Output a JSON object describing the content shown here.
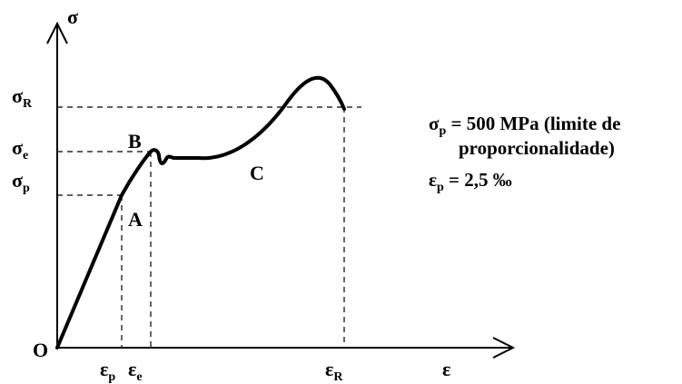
{
  "axes": {
    "y_symbol": "σ",
    "x_symbol": "ε",
    "origin": "O"
  },
  "stress_labels": [
    {
      "sym": "σ",
      "sub": "R"
    },
    {
      "sym": "σ",
      "sub": "e"
    },
    {
      "sym": "σ",
      "sub": "p"
    }
  ],
  "strain_labels": [
    {
      "sym": "ε",
      "sub": "p"
    },
    {
      "sym": "ε",
      "sub": "e"
    },
    {
      "sym": "ε",
      "sub": "R"
    }
  ],
  "points": {
    "a": "A",
    "b": "B",
    "c": "C"
  },
  "notes": {
    "line1_sym": "σ",
    "line1_sub": "p",
    "line1_text": " = 500 MPa (limite de",
    "line2_text": "proporcionalidade)",
    "line3_sym": "ε",
    "line3_sub": "p",
    "line3_text": " = 2,5 ‰"
  }
}
